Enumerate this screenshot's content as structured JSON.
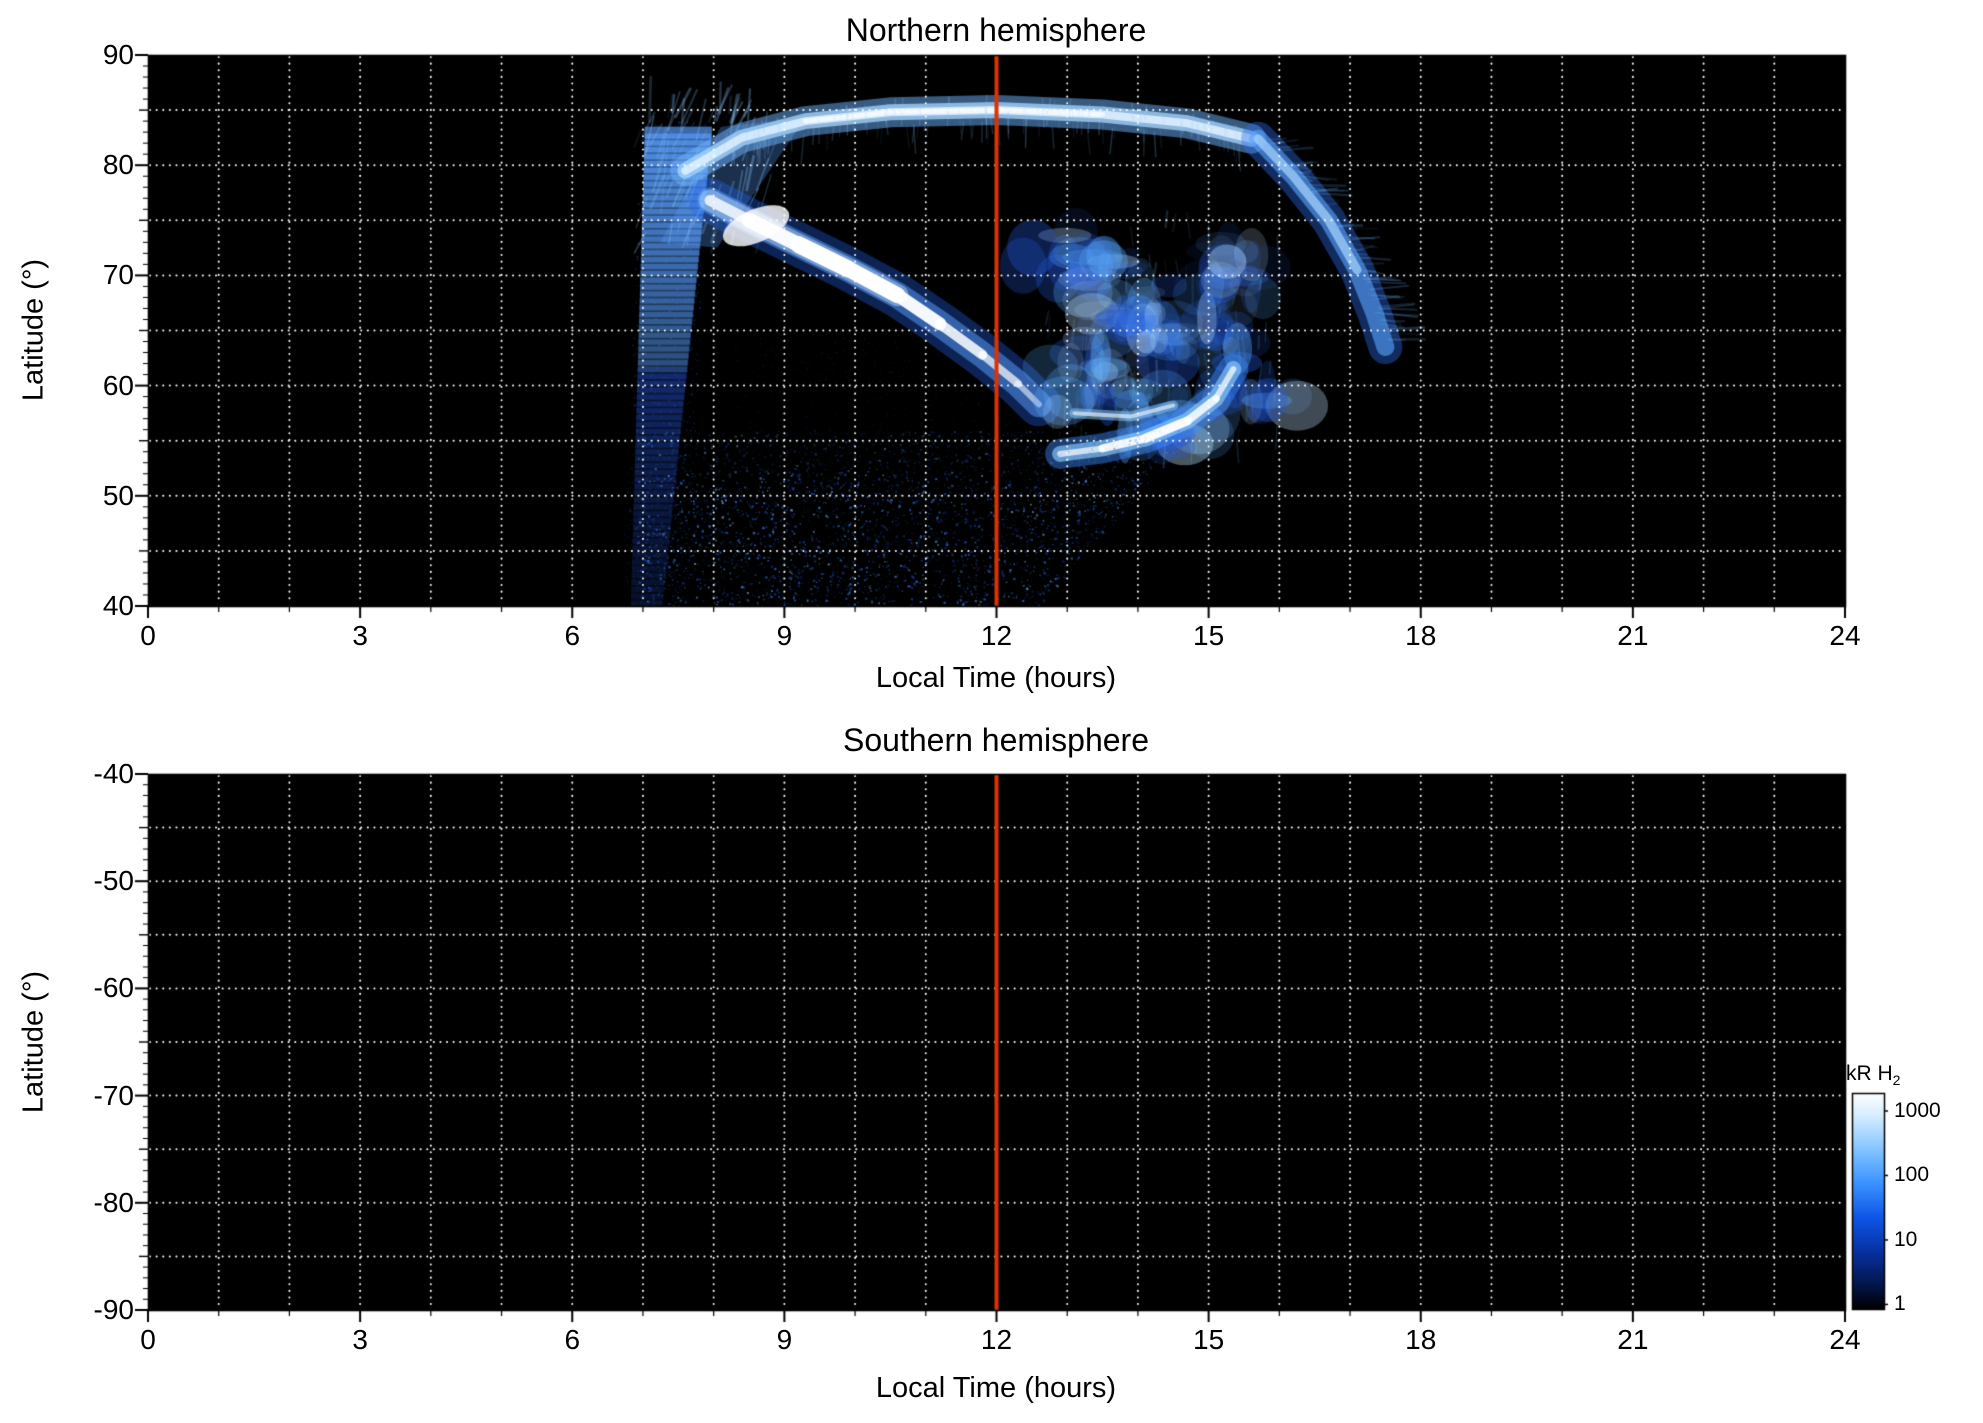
{
  "figure": {
    "background": "#ffffff",
    "plot_background": "#000000",
    "grid_color": "#ffffff",
    "frame_color": "#000000"
  },
  "chart_data": {
    "type": "heatmap",
    "description": "Auroral H2 emission maps versus local time and latitude for both hemispheres; northern hemisphere shows bright auroral arcs, southern hemisphere shows no data (black).",
    "x": {
      "label": "Local Time (hours)",
      "lim": [
        0,
        24
      ],
      "ticks": [
        0,
        3,
        6,
        9,
        12,
        15,
        18,
        21,
        24
      ],
      "minor_step": 1,
      "grid_step": 1
    },
    "noon_line": {
      "x": 12,
      "color": "#dd3300"
    },
    "grid": {
      "style": "dotted",
      "color": "#ffffff",
      "y_step_deg": 5
    },
    "panels": [
      {
        "id": "north",
        "title": "Northern hemisphere",
        "ylabel": "Latitude (°)",
        "ylim": [
          40,
          90
        ],
        "yticks": [
          90,
          80,
          70,
          60,
          50,
          40
        ],
        "y_minor_step": 1,
        "content": "auroral emission present",
        "features": {
          "dawn_band": {
            "lt_bottom": 7.05,
            "lt_top": 7.5,
            "lat_range": [
              40,
              83
            ],
            "width_h": [
              0.45,
              0.95
            ]
          },
          "polar_band": {
            "points": [
              [
                7.6,
                79.5
              ],
              [
                8.4,
                82.5
              ],
              [
                9.3,
                84.0
              ],
              [
                10.5,
                84.8
              ],
              [
                12.0,
                85.0
              ],
              [
                13.5,
                84.6
              ],
              [
                14.7,
                83.8
              ],
              [
                15.6,
                82.4
              ]
            ],
            "width_deg": 2.2
          },
          "main_arc": {
            "points": [
              [
                7.95,
                76.8
              ],
              [
                8.5,
                75.0
              ],
              [
                9.2,
                72.8
              ],
              [
                9.9,
                70.6
              ],
              [
                10.6,
                68.2
              ],
              [
                11.2,
                65.6
              ],
              [
                11.8,
                62.8
              ],
              [
                12.3,
                60.2
              ],
              [
                12.6,
                58.3
              ]
            ],
            "peak_brightness_kR": 1000
          },
          "afternoon_arc": {
            "points": [
              [
                12.9,
                53.8
              ],
              [
                13.5,
                54.3
              ],
              [
                14.1,
                55.2
              ],
              [
                14.7,
                56.8
              ],
              [
                15.1,
                58.8
              ],
              [
                15.35,
                61.5
              ]
            ]
          },
          "afternoon_arc2": {
            "points": [
              [
                13.1,
                57.5
              ],
              [
                13.9,
                57.2
              ],
              [
                14.5,
                58.2
              ]
            ]
          },
          "dusk_band": {
            "points": [
              [
                15.7,
                82.4
              ],
              [
                16.2,
                79.0
              ],
              [
                16.7,
                75.0
              ],
              [
                17.1,
                70.5
              ],
              [
                17.35,
                66.5
              ],
              [
                17.5,
                63.5
              ]
            ]
          },
          "patch_clusters": [
            {
              "c": [
                13.2,
                71
              ],
              "n": 26
            },
            {
              "c": [
                13.9,
                66
              ],
              "n": 30
            },
            {
              "c": [
                13.4,
                60
              ],
              "n": 24
            },
            {
              "c": [
                14.8,
                64
              ],
              "n": 28
            },
            {
              "c": [
                15.3,
                70
              ],
              "n": 20
            },
            {
              "c": [
                14.3,
                57
              ],
              "n": 20
            },
            {
              "c": [
                15.6,
                59
              ],
              "n": 14
            }
          ],
          "speckle_region": {
            "lt": [
              6.9,
              14.8
            ],
            "lat": [
              40,
              56
            ],
            "n": 5200
          }
        }
      },
      {
        "id": "south",
        "title": "Southern hemisphere",
        "ylabel": "Latitude (°)",
        "ylim": [
          -90,
          -40
        ],
        "yticks": [
          -40,
          -50,
          -60,
          -70,
          -80,
          -90
        ],
        "y_minor_step": 1,
        "content": "no emission (all black)"
      }
    ],
    "colorbar": {
      "title_main": "kR H",
      "title_sub": "2",
      "scale": "log",
      "ticks": [
        1000,
        100,
        10,
        1
      ],
      "range": [
        1,
        1000
      ],
      "gradient": [
        {
          "pos": 0.0,
          "color": "#ffffff"
        },
        {
          "pos": 0.1,
          "color": "#d8eeff"
        },
        {
          "pos": 0.25,
          "color": "#8ac8ff"
        },
        {
          "pos": 0.42,
          "color": "#3a92ff"
        },
        {
          "pos": 0.58,
          "color": "#0d55e6"
        },
        {
          "pos": 0.74,
          "color": "#07309f"
        },
        {
          "pos": 0.88,
          "color": "#03174f"
        },
        {
          "pos": 1.0,
          "color": "#000000"
        }
      ]
    }
  }
}
